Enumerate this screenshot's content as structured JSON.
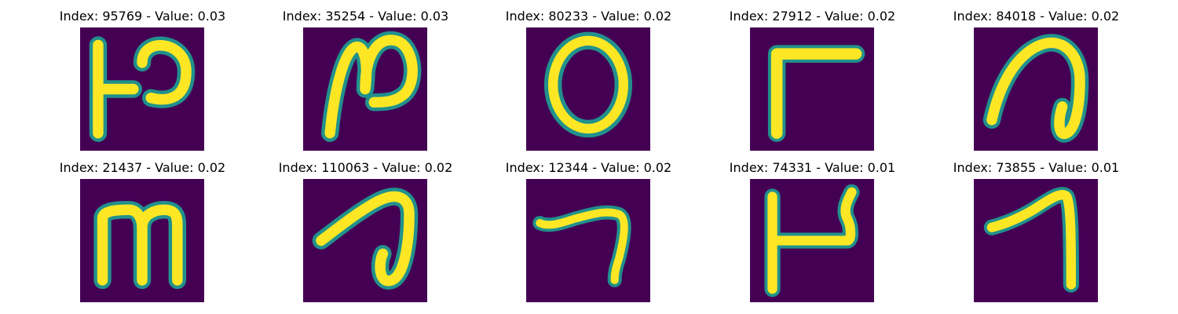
{
  "figure": {
    "panels": [
      {
        "title": "Index: 95769 - Value: 0.03"
      },
      {
        "title": "Index: 35254 - Value: 0.03"
      },
      {
        "title": "Index: 80233 - Value: 0.02"
      },
      {
        "title": "Index: 27912 - Value: 0.02"
      },
      {
        "title": "Index: 84018 - Value: 0.02"
      },
      {
        "title": "Index: 21437 - Value: 0.02"
      },
      {
        "title": "Index: 110063 - Value: 0.02"
      },
      {
        "title": "Index: 12344 - Value: 0.02"
      },
      {
        "title": "Index: 74331 - Value: 0.01"
      },
      {
        "title": "Index: 73855 - Value: 0.01"
      }
    ],
    "colors": {
      "background": "#440154",
      "stroke_outer": "#21918c",
      "stroke_inner": "#fde725"
    }
  }
}
